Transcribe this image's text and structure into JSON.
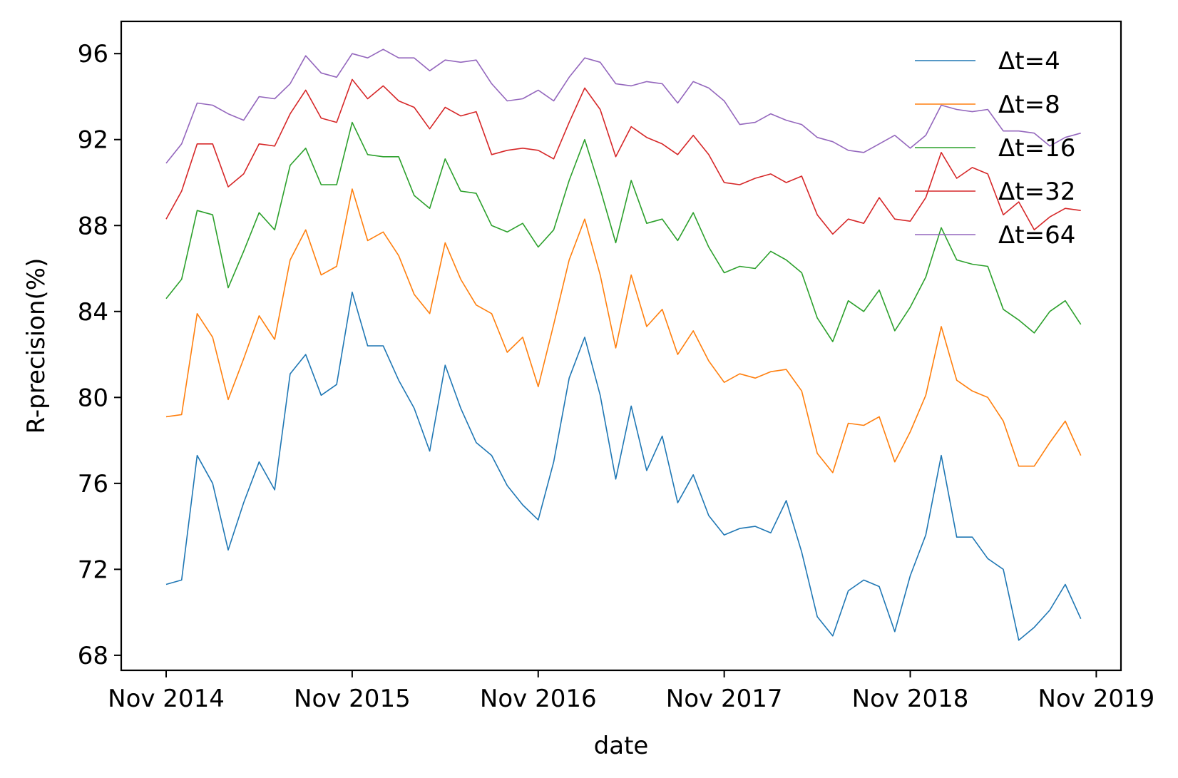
{
  "chart_data": {
    "type": "line",
    "xlabel": "date",
    "ylabel": "R-precision(%)",
    "ylim": [
      67.3,
      97.5
    ],
    "yticks": [
      68,
      72,
      76,
      80,
      84,
      88,
      92,
      96
    ],
    "xticks": [
      "Nov 2014",
      "Nov 2015",
      "Nov 2016",
      "Nov 2017",
      "Nov 2018",
      "Nov 2019"
    ],
    "x": [
      "Nov 2014",
      "Dec 2014",
      "Jan 2015",
      "Feb 2015",
      "Mar 2015",
      "Apr 2015",
      "May 2015",
      "Jun 2015",
      "Jul 2015",
      "Aug 2015",
      "Sep 2015",
      "Oct 2015",
      "Nov 2015",
      "Dec 2015",
      "Jan 2016",
      "Feb 2016",
      "Mar 2016",
      "Apr 2016",
      "May 2016",
      "Jun 2016",
      "Jul 2016",
      "Aug 2016",
      "Sep 2016",
      "Oct 2016",
      "Nov 2016",
      "Dec 2016",
      "Jan 2017",
      "Feb 2017",
      "Mar 2017",
      "Apr 2017",
      "May 2017",
      "Jun 2017",
      "Jul 2017",
      "Aug 2017",
      "Sep 2017",
      "Oct 2017",
      "Nov 2017",
      "Dec 2017",
      "Jan 2018",
      "Feb 2018",
      "Mar 2018",
      "Apr 2018",
      "May 2018",
      "Jun 2018",
      "Jul 2018",
      "Aug 2018",
      "Sep 2018",
      "Oct 2018",
      "Nov 2018",
      "Dec 2018",
      "Jan 2019",
      "Feb 2019",
      "Mar 2019",
      "Apr 2019",
      "May 2019",
      "Jun 2019",
      "Jul 2019",
      "Aug 2019",
      "Sep 2019",
      "Oct 2019"
    ],
    "grid": false,
    "legend_position": "top-right",
    "series": [
      {
        "name": "Δt=4",
        "color": "#1f77b4",
        "values": [
          71.3,
          71.5,
          77.3,
          76.0,
          72.9,
          75.1,
          77.0,
          75.7,
          81.1,
          82.0,
          80.1,
          80.6,
          84.9,
          82.4,
          82.4,
          80.8,
          79.5,
          77.5,
          81.5,
          79.5,
          77.9,
          77.3,
          75.9,
          75.0,
          74.3,
          77.0,
          80.9,
          82.8,
          80.1,
          76.2,
          79.6,
          76.6,
          78.2,
          75.1,
          76.4,
          74.5,
          73.6,
          73.9,
          74.0,
          73.7,
          75.2,
          72.8,
          69.8,
          68.9,
          71.0,
          71.5,
          71.2,
          69.1,
          71.7,
          73.6,
          77.3,
          73.5,
          73.5,
          72.5,
          72.0,
          68.7,
          69.3,
          70.1,
          71.3,
          69.7
        ]
      },
      {
        "name": "Δt=8",
        "color": "#ff7f0e",
        "values": [
          79.1,
          79.2,
          83.9,
          82.8,
          79.9,
          81.8,
          83.8,
          82.7,
          86.4,
          87.8,
          85.7,
          86.1,
          89.7,
          87.3,
          87.7,
          86.6,
          84.8,
          83.9,
          87.2,
          85.5,
          84.3,
          83.9,
          82.1,
          82.8,
          80.5,
          83.4,
          86.4,
          88.3,
          85.7,
          82.3,
          85.7,
          83.3,
          84.1,
          82.0,
          83.1,
          81.7,
          80.7,
          81.1,
          80.9,
          81.2,
          81.3,
          80.3,
          77.4,
          76.5,
          78.8,
          78.7,
          79.1,
          77.0,
          78.4,
          80.1,
          83.3,
          80.8,
          80.3,
          80.0,
          78.9,
          76.8,
          76.8,
          77.9,
          78.9,
          77.3
        ]
      },
      {
        "name": "Δt=16",
        "color": "#2ca02c",
        "values": [
          84.6,
          85.5,
          88.7,
          88.5,
          85.1,
          86.8,
          88.6,
          87.8,
          90.8,
          91.6,
          89.9,
          89.9,
          92.8,
          91.3,
          91.2,
          91.2,
          89.4,
          88.8,
          91.1,
          89.6,
          89.5,
          88.0,
          87.7,
          88.1,
          87.0,
          87.8,
          90.1,
          92.0,
          89.7,
          87.2,
          90.1,
          88.1,
          88.3,
          87.3,
          88.6,
          87.0,
          85.8,
          86.1,
          86.0,
          86.8,
          86.4,
          85.8,
          83.7,
          82.6,
          84.5,
          84.0,
          85.0,
          83.1,
          84.2,
          85.6,
          87.9,
          86.4,
          86.2,
          86.1,
          84.1,
          83.6,
          83.0,
          84.0,
          84.5,
          83.4
        ]
      },
      {
        "name": "Δt=32",
        "color": "#d62728",
        "values": [
          88.3,
          89.6,
          91.8,
          91.8,
          89.8,
          90.4,
          91.8,
          91.7,
          93.2,
          94.3,
          93.0,
          92.8,
          94.8,
          93.9,
          94.5,
          93.8,
          93.5,
          92.5,
          93.5,
          93.1,
          93.3,
          91.3,
          91.5,
          91.6,
          91.5,
          91.1,
          92.8,
          94.4,
          93.4,
          91.2,
          92.6,
          92.1,
          91.8,
          91.3,
          92.2,
          91.3,
          90.0,
          89.9,
          90.2,
          90.4,
          90.0,
          90.3,
          88.5,
          87.6,
          88.3,
          88.1,
          89.3,
          88.3,
          88.2,
          89.3,
          91.4,
          90.2,
          90.7,
          90.4,
          88.5,
          89.1,
          87.8,
          88.4,
          88.8,
          88.7
        ]
      },
      {
        "name": "Δt=64",
        "color": "#9467bd",
        "values": [
          90.9,
          91.8,
          93.7,
          93.6,
          93.2,
          92.9,
          94.0,
          93.9,
          94.6,
          95.9,
          95.1,
          94.9,
          96.0,
          95.8,
          96.2,
          95.8,
          95.8,
          95.2,
          95.7,
          95.6,
          95.7,
          94.6,
          93.8,
          93.9,
          94.3,
          93.8,
          94.9,
          95.8,
          95.6,
          94.6,
          94.5,
          94.7,
          94.6,
          93.7,
          94.7,
          94.4,
          93.8,
          92.7,
          92.8,
          93.2,
          92.9,
          92.7,
          92.1,
          91.9,
          91.5,
          91.4,
          91.8,
          92.2,
          91.6,
          92.2,
          93.6,
          93.4,
          93.3,
          93.4,
          92.4,
          92.4,
          92.3,
          91.7,
          92.1,
          92.3
        ]
      }
    ]
  }
}
